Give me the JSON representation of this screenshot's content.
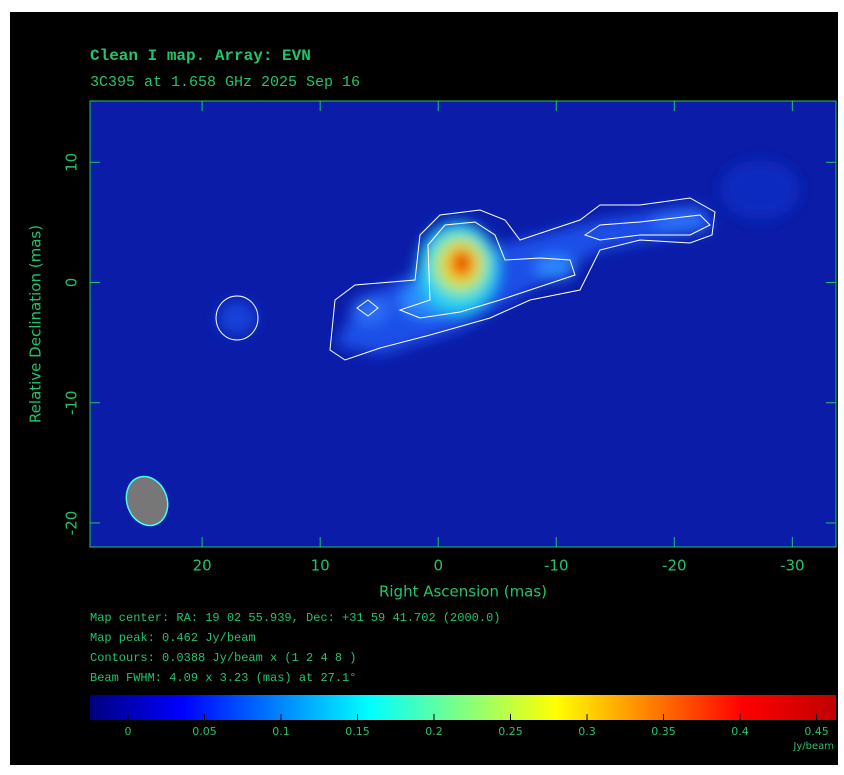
{
  "chart_data": {
    "type": "image",
    "title": "Clean I map.  Array:  EVN",
    "subtitle": "3C395 at 1.658 GHz 2025 Sep 16",
    "x_label": "Right Ascension  (mas)",
    "y_label": "Relative Declination  (mas)",
    "xlim": [
      29.5,
      -33.7
    ],
    "xticks": [
      20,
      10,
      0,
      -10,
      -20,
      -30
    ],
    "ylim": [
      -22,
      15.1
    ],
    "yticks": [
      10,
      0,
      -10,
      -20
    ],
    "notes": [
      "Map center:  RA: 19 02 55.939,  Dec: +31 59 41.702 (2000.0)",
      "Map peak: 0.462 Jy/beam",
      "Contours: 0.0388 Jy/beam x (1 2 4 8 )",
      "Beam FWHM: 4.09 x 3.23 (mas) at 27.1°"
    ],
    "colorbar": {
      "lim": [
        -0.0248,
        0.4627
      ],
      "ticks": [
        0,
        0.05,
        0.1,
        0.15,
        0.2,
        0.25,
        0.3,
        0.35,
        0.4,
        0.45
      ],
      "label": "Jy/beam",
      "colormap": [
        "#000080",
        "#0000ff",
        "#0080ff",
        "#00ffff",
        "#80ff80",
        "#ffff00",
        "#ff8000",
        "#ff0000",
        "#c00000"
      ]
    },
    "color": "#22c46a"
  }
}
